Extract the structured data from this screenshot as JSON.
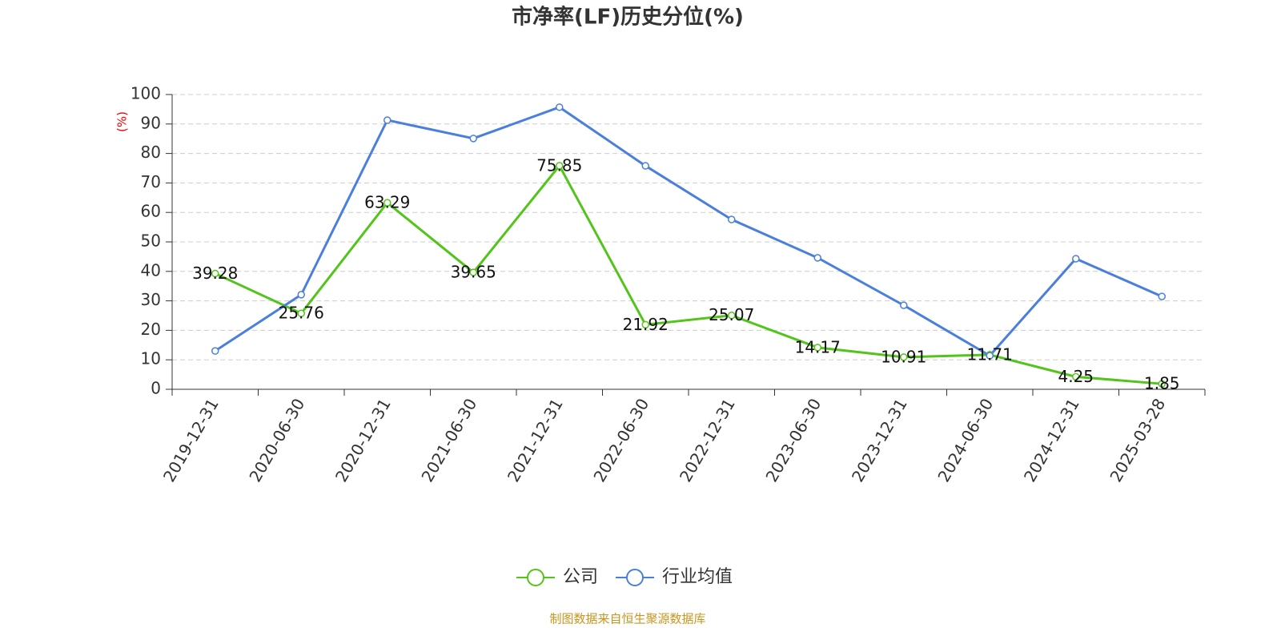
{
  "chart_data": {
    "type": "line",
    "title": "市净率(LF)历史分位(%)",
    "y_label": "(%)",
    "categories": [
      "2019-12-31",
      "2020-06-30",
      "2020-12-31",
      "2021-06-30",
      "2021-12-31",
      "2022-06-30",
      "2022-12-31",
      "2023-06-30",
      "2023-12-31",
      "2024-06-30",
      "2024-12-31",
      "2025-03-28"
    ],
    "series": [
      {
        "name": "公司",
        "color": "#52c41a",
        "values": [
          39.28,
          25.76,
          63.29,
          39.65,
          75.85,
          21.92,
          25.07,
          14.17,
          10.91,
          11.71,
          4.25,
          1.85
        ],
        "show_labels": true
      },
      {
        "name": "行业均值",
        "color": "#4a7fdc",
        "values": [
          13.0,
          32.1,
          91.3,
          85.1,
          95.7,
          75.8,
          57.6,
          44.6,
          28.5,
          11.4,
          44.3,
          31.5
        ],
        "show_labels": false
      }
    ],
    "ylim": [
      0,
      100
    ],
    "yticks": [
      0,
      10,
      20,
      30,
      40,
      50,
      60,
      70,
      80,
      90,
      100
    ],
    "grid": true,
    "source": "制图数据来自恒生聚源数据库"
  }
}
